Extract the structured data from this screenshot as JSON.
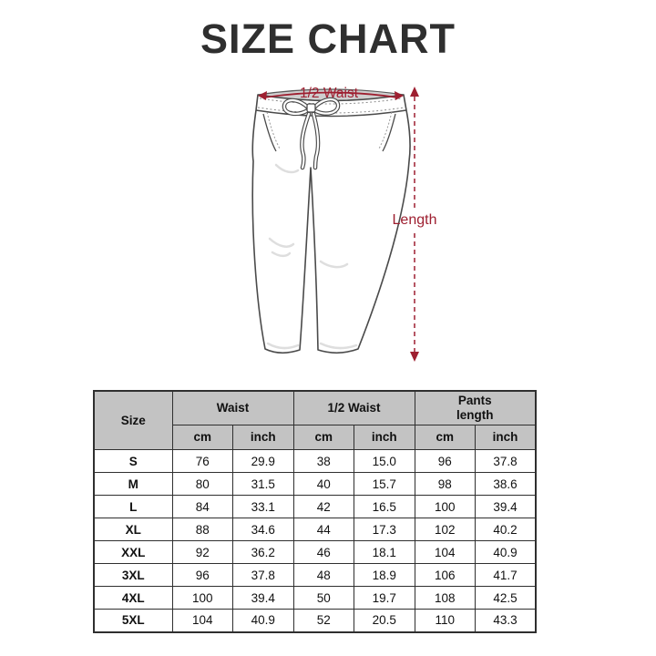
{
  "title": "SIZE CHART",
  "diagram": {
    "half_waist_label": "1/2 Waist",
    "length_label": "Length",
    "annotation_color": "#9e1f30",
    "outline_color": "#4a4a4a",
    "opening_fill": "#cfcfcf"
  },
  "table": {
    "header_bg": "#c3c3c3",
    "border_color": "#2f2f2f",
    "size_header": "Size",
    "groups": [
      {
        "label": "Waist"
      },
      {
        "label": "1/2 Waist"
      },
      {
        "label": "Pants\nlength"
      }
    ],
    "unit_cm": "cm",
    "unit_inch": "inch",
    "rows": [
      {
        "size": "S",
        "values": [
          "76",
          "29.9",
          "38",
          "15.0",
          "96",
          "37.8"
        ]
      },
      {
        "size": "M",
        "values": [
          "80",
          "31.5",
          "40",
          "15.7",
          "98",
          "38.6"
        ]
      },
      {
        "size": "L",
        "values": [
          "84",
          "33.1",
          "42",
          "16.5",
          "100",
          "39.4"
        ]
      },
      {
        "size": "XL",
        "values": [
          "88",
          "34.6",
          "44",
          "17.3",
          "102",
          "40.2"
        ]
      },
      {
        "size": "XXL",
        "values": [
          "92",
          "36.2",
          "46",
          "18.1",
          "104",
          "40.9"
        ]
      },
      {
        "size": "3XL",
        "values": [
          "96",
          "37.8",
          "48",
          "18.9",
          "106",
          "41.7"
        ]
      },
      {
        "size": "4XL",
        "values": [
          "100",
          "39.4",
          "50",
          "19.7",
          "108",
          "42.5"
        ]
      },
      {
        "size": "5XL",
        "values": [
          "104",
          "40.9",
          "52",
          "20.5",
          "110",
          "43.3"
        ]
      }
    ]
  }
}
